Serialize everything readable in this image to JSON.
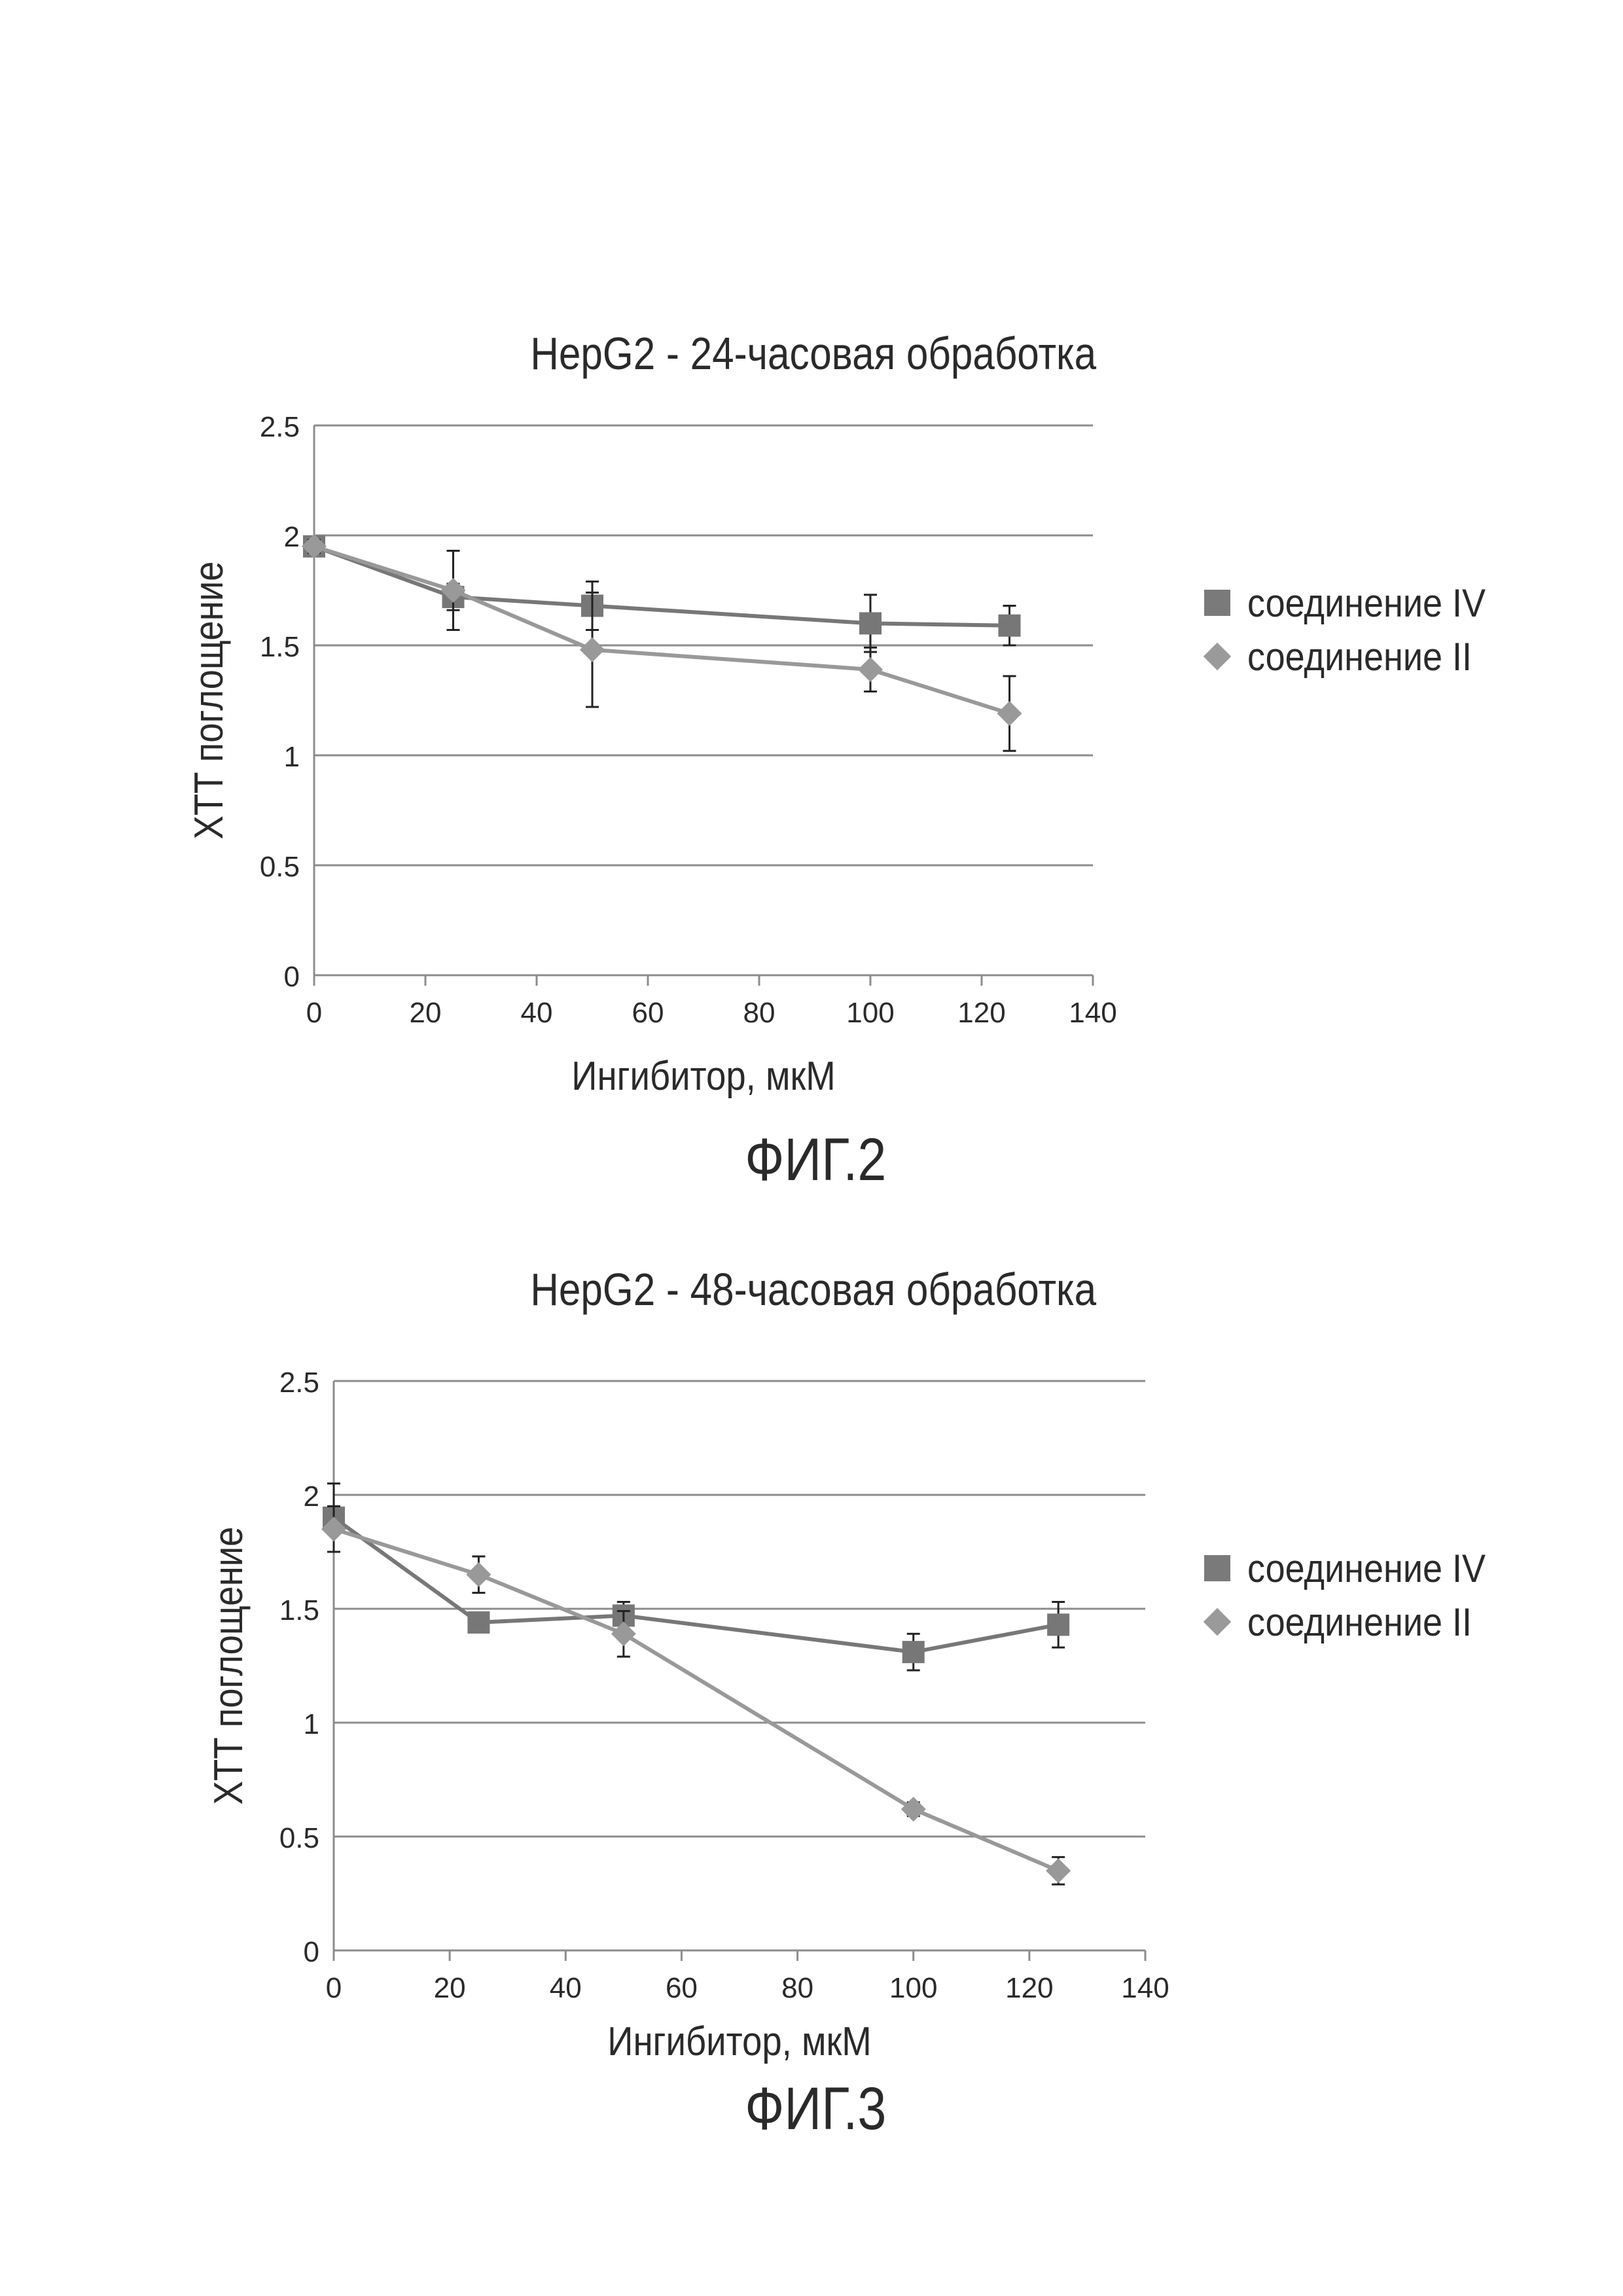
{
  "chart_data": [
    {
      "type": "line",
      "title": "HepG2 - 24-часовая обработка",
      "figure_label": "ФИГ.2",
      "xlabel": "Ингибитор, мкМ",
      "ylabel": "ХТТ поглощение",
      "xlim": [
        0,
        140
      ],
      "ylim": [
        0,
        2.5
      ],
      "xticks": [
        0,
        20,
        40,
        60,
        80,
        100,
        120,
        140
      ],
      "yticks": [
        0,
        0.5,
        1,
        1.5,
        2,
        2.5
      ],
      "xtick_labels": [
        "0",
        "20",
        "40",
        "60",
        "80",
        "100",
        "120",
        "140"
      ],
      "ytick_labels": [
        "0",
        "0.5",
        "1",
        "1.5",
        "2",
        "2.5"
      ],
      "grid": true,
      "legend_position": "right",
      "series": [
        {
          "name": "соединение IV",
          "marker": "square",
          "color": "#777777",
          "x": [
            0,
            25,
            50,
            100,
            125
          ],
          "y": [
            1.95,
            1.72,
            1.68,
            1.6,
            1.59
          ],
          "err": [
            0.03,
            0.06,
            0.11,
            0.13,
            0.09
          ]
        },
        {
          "name": "соединение II",
          "marker": "diamond",
          "color": "#999999",
          "x": [
            0,
            25,
            50,
            100,
            125
          ],
          "y": [
            1.95,
            1.75,
            1.48,
            1.39,
            1.19
          ],
          "err": [
            0.03,
            0.18,
            0.26,
            0.1,
            0.17
          ]
        }
      ]
    },
    {
      "type": "line",
      "title": "HepG2 - 48-часовая обработка",
      "figure_label": "ФИГ.3",
      "xlabel": "Ингибитор, мкМ",
      "ylabel": "ХТТ поглощение",
      "xlim": [
        0,
        140
      ],
      "ylim": [
        0,
        2.5
      ],
      "xticks": [
        0,
        20,
        40,
        60,
        80,
        100,
        120,
        140
      ],
      "yticks": [
        0,
        0.5,
        1,
        1.5,
        2,
        2.5
      ],
      "xtick_labels": [
        "0",
        "20",
        "40",
        "60",
        "80",
        "100",
        "120",
        "140"
      ],
      "ytick_labels": [
        "0",
        "0.5",
        "1",
        "1.5",
        "2",
        "2.5"
      ],
      "grid": true,
      "legend_position": "right",
      "series": [
        {
          "name": "соединение IV",
          "marker": "square",
          "color": "#777777",
          "x": [
            0,
            25,
            50,
            100,
            125
          ],
          "y": [
            1.9,
            1.44,
            1.47,
            1.31,
            1.43
          ],
          "err": [
            0.15,
            0.02,
            0.06,
            0.08,
            0.1
          ]
        },
        {
          "name": "соединение II",
          "marker": "diamond",
          "color": "#999999",
          "x": [
            0,
            25,
            50,
            100,
            125
          ],
          "y": [
            1.85,
            1.65,
            1.39,
            0.62,
            0.35
          ],
          "err": [
            0.1,
            0.08,
            0.1,
            0.03,
            0.06
          ]
        }
      ]
    }
  ]
}
